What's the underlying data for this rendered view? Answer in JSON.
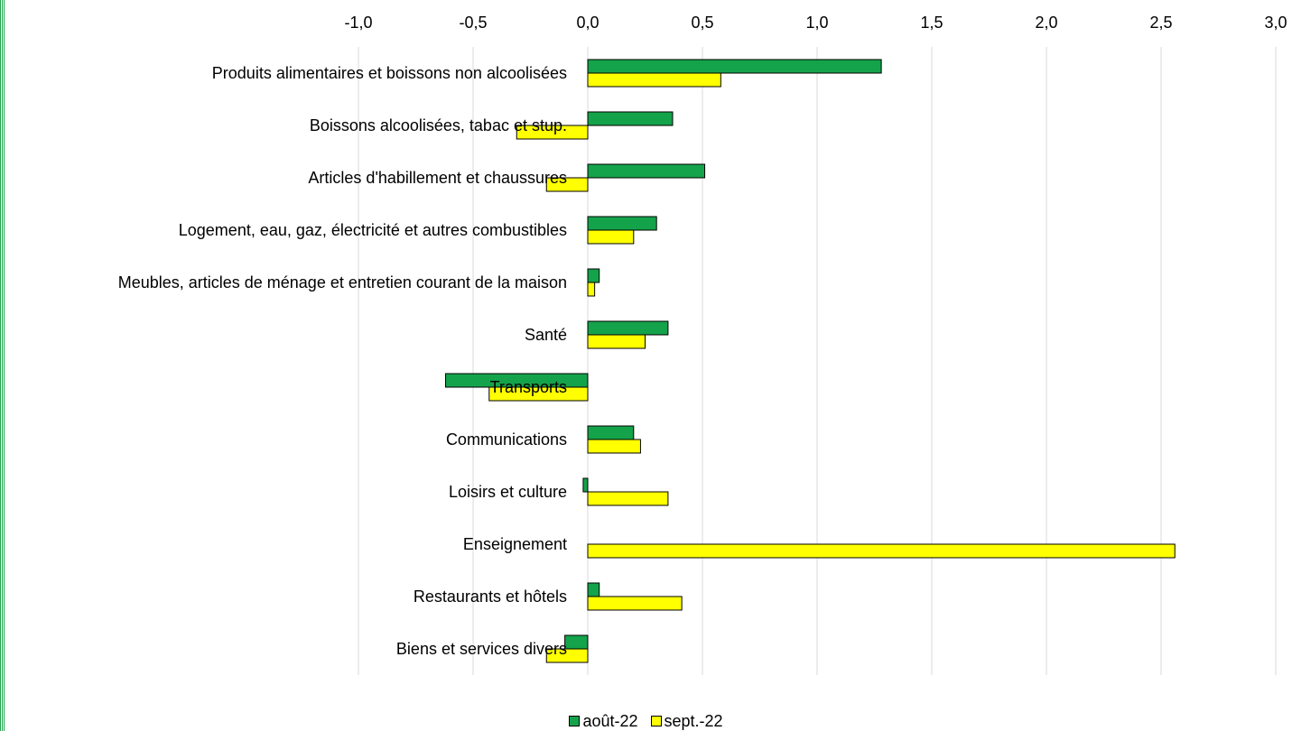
{
  "chart_data": {
    "type": "bar",
    "orientation": "horizontal",
    "x_axis_position": "top",
    "grid": "vertical",
    "legend_position": "bottom",
    "xlim": [
      -1.0,
      3.0
    ],
    "xticks": [
      -1.0,
      -0.5,
      0.0,
      0.5,
      1.0,
      1.5,
      2.0,
      2.5,
      3.0
    ],
    "xtick_labels": [
      "-1,0",
      "-0,5",
      "0,0",
      "0,5",
      "1,0",
      "1,5",
      "2,0",
      "2,5",
      "3,0"
    ],
    "categories": [
      "Produits alimentaires et boissons non alcoolisées",
      "Boissons alcoolisées, tabac et stup.",
      "Articles d'habillement et chaussures",
      "Logement, eau, gaz, électricité et autres combustibles",
      "Meubles, articles de ménage et entretien courant de la maison",
      "Santé",
      "Transports",
      "Communications",
      "Loisirs et culture",
      "Enseignement",
      "Restaurants et hôtels",
      "Biens et services divers"
    ],
    "series": [
      {
        "name": "août-22",
        "color": "#14a34a",
        "values": [
          1.28,
          0.37,
          0.51,
          0.3,
          0.05,
          0.35,
          -0.62,
          0.2,
          -0.02,
          0.0,
          0.05,
          -0.1
        ]
      },
      {
        "name": "sept.-22",
        "color": "#ffff00",
        "values": [
          0.58,
          -0.31,
          -0.18,
          0.2,
          0.03,
          0.25,
          -0.43,
          0.23,
          0.35,
          2.56,
          0.41,
          -0.18
        ]
      }
    ]
  }
}
